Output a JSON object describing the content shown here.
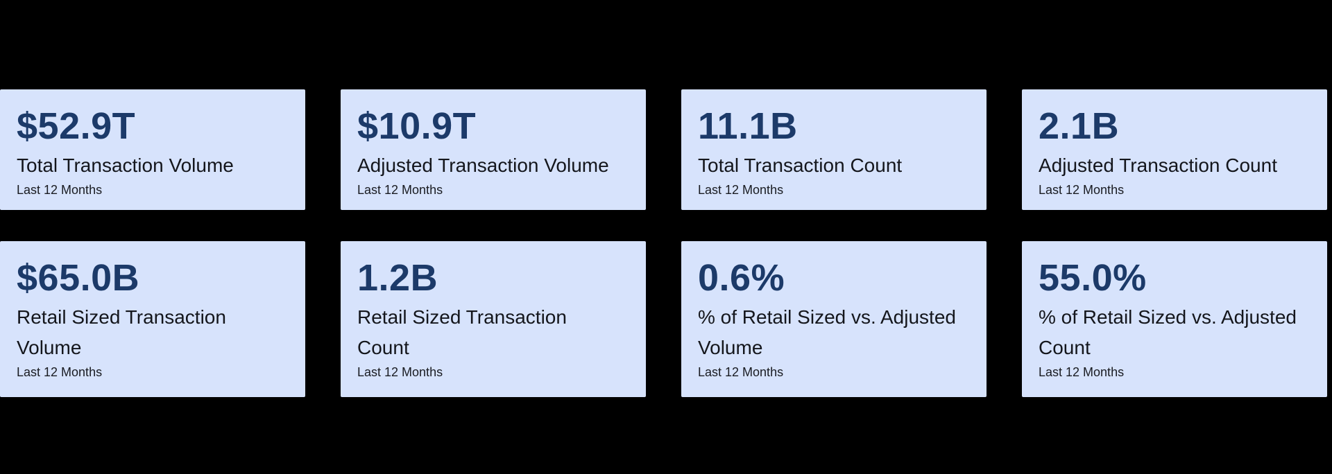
{
  "page": {
    "background_color": "#000000",
    "card_background_color": "#d7e3fc",
    "value_text_color": "#1c3a69",
    "label_text_color": "#14161c"
  },
  "cards": [
    {
      "value": "$52.9T",
      "label": "Total Transaction Volume",
      "period": "Last 12 Months"
    },
    {
      "value": "$10.9T",
      "label": "Adjusted Transaction Volume",
      "period": "Last 12 Months"
    },
    {
      "value": "11.1B",
      "label": "Total Transaction Count",
      "period": "Last 12 Months"
    },
    {
      "value": "2.1B",
      "label": "Adjusted Transaction Count",
      "period": "Last 12 Months"
    },
    {
      "value": "$65.0B",
      "label": "Retail Sized Transaction Volume",
      "period": "Last 12 Months"
    },
    {
      "value": "1.2B",
      "label": "Retail Sized Transaction Count",
      "period": "Last 12 Months"
    },
    {
      "value": "0.6%",
      "label": "% of Retail Sized vs. Adjusted Volume",
      "period": "Last 12 Months"
    },
    {
      "value": "55.0%",
      "label": "% of Retail Sized vs. Adjusted Count",
      "period": "Last 12 Months"
    }
  ]
}
